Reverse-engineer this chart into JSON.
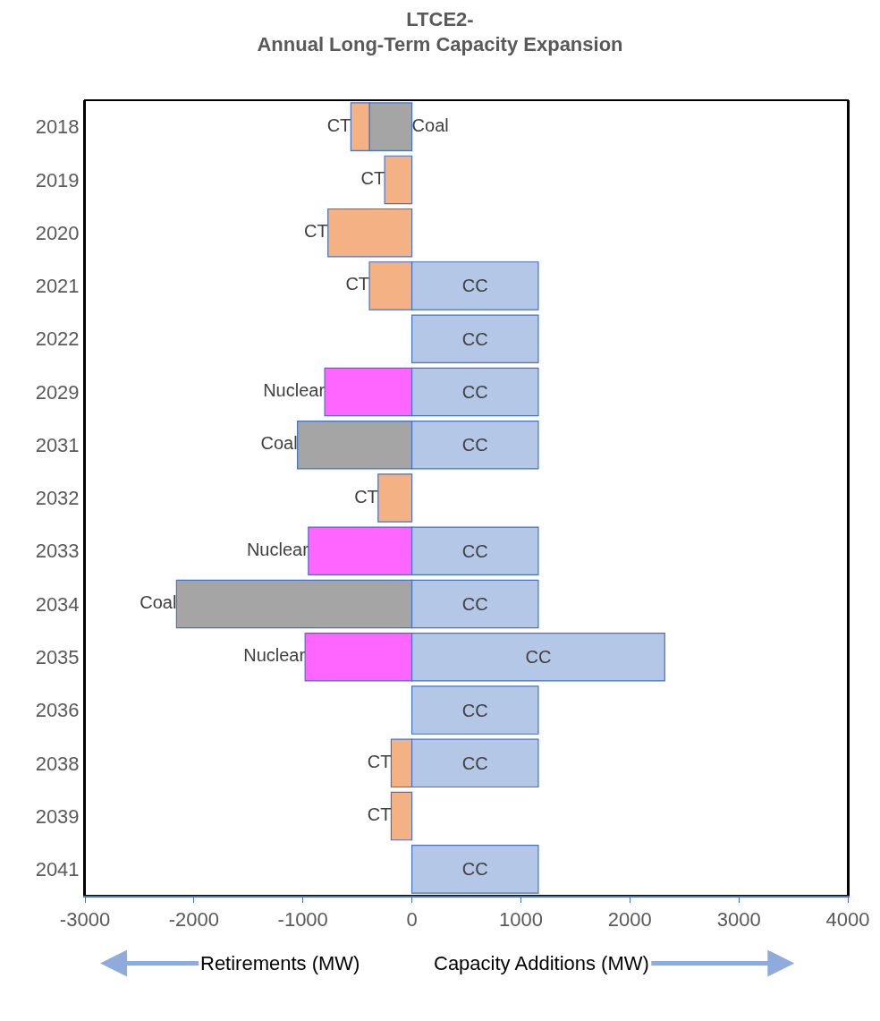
{
  "chart_data": {
    "type": "bar",
    "orientation": "horizontal",
    "stacked": true,
    "title": "LTCE2-\nAnnual Long-Term Capacity Expansion",
    "categories": [
      "2018",
      "2019",
      "2020",
      "2021",
      "2022",
      "2029",
      "2031",
      "2032",
      "2033",
      "2034",
      "2035",
      "2036",
      "2038",
      "2039",
      "2041"
    ],
    "series": [
      {
        "color": "#a5a5a5",
        "values": [
          -390,
          null,
          null,
          null,
          null,
          null,
          -1050,
          null,
          null,
          -2160,
          null,
          null,
          null,
          null,
          null
        ],
        "value_labels": [
          "Coal",
          null,
          null,
          null,
          null,
          null,
          "Coal",
          null,
          null,
          "Coal",
          null,
          null,
          null,
          null,
          null
        ]
      },
      {
        "color": "#f4b183",
        "values": [
          -170,
          -250,
          -770,
          -390,
          null,
          null,
          null,
          -310,
          null,
          null,
          null,
          null,
          -190,
          -190,
          null
        ],
        "value_labels": [
          "CT",
          "CT",
          "CT",
          "CT",
          null,
          null,
          null,
          "CT",
          null,
          null,
          null,
          null,
          "CT",
          "CT",
          null
        ]
      },
      {
        "color": "#ff66ff",
        "values": [
          null,
          null,
          null,
          null,
          null,
          -800,
          null,
          null,
          -950,
          null,
          -980,
          null,
          null,
          null,
          null
        ],
        "value_labels": [
          null,
          null,
          null,
          null,
          null,
          "Nuclear",
          null,
          null,
          "Nuclear",
          null,
          "Nuclear",
          null,
          null,
          null,
          null
        ]
      },
      {
        "color": "#b4c7e7",
        "values": [
          null,
          null,
          null,
          1160,
          1160,
          1160,
          1160,
          null,
          1160,
          1160,
          2320,
          1160,
          1160,
          null,
          1160
        ],
        "value_labels": [
          null,
          null,
          null,
          "CC",
          "CC",
          "CC",
          "CC",
          null,
          "CC",
          "CC",
          "CC",
          "CC",
          "CC",
          null,
          "CC"
        ]
      }
    ],
    "xlim": [
      -3000,
      4000
    ],
    "xticks": [
      -3000,
      -2000,
      -1000,
      0,
      1000,
      2000,
      3000,
      4000
    ],
    "grid": false,
    "legend": false,
    "annotations": [
      "Retirements (MW)",
      "Capacity Additions (MW)"
    ]
  }
}
